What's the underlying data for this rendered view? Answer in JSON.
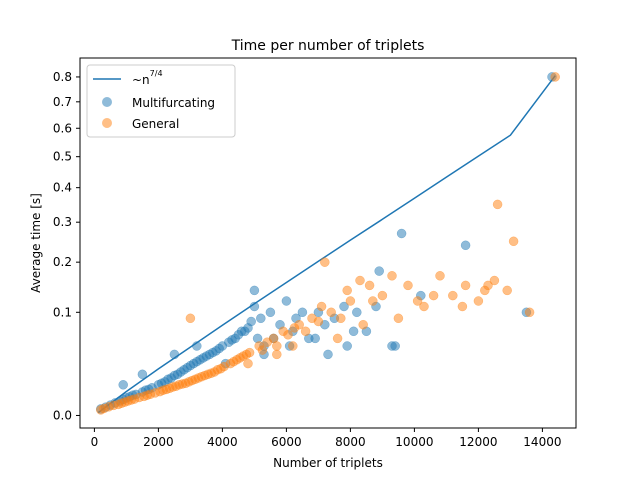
{
  "chart_data": {
    "type": "scatter",
    "title": "Time per number of triplets",
    "xlabel": "Number of triplets",
    "ylabel": "Average time [s]",
    "xlim": [
      -450,
      15050
    ],
    "yscale": "power-4/7",
    "ylim": [
      -0.0025,
      0.88
    ],
    "xticks": [
      0,
      2000,
      4000,
      6000,
      8000,
      10000,
      12000,
      14000
    ],
    "yticks": [
      0.0,
      0.1,
      0.2,
      0.3,
      0.4,
      0.5,
      0.6,
      0.7,
      0.8
    ],
    "xtick_labels": [
      "0",
      "2000",
      "4000",
      "6000",
      "8000",
      "10000",
      "12000",
      "14000"
    ],
    "ytick_labels": [
      "0.0",
      "0.1",
      "0.2",
      "0.3",
      "0.4",
      "0.5",
      "0.6",
      "0.7",
      "0.8"
    ],
    "grid": false,
    "legend_position": "top-left",
    "legend": [
      {
        "label": "~n^(7/4)",
        "label_main": "~n",
        "label_exp": "7/4",
        "kind": "line",
        "color": "#1f77b4"
      },
      {
        "label": "Multifurcating",
        "kind": "marker",
        "color": "#1f77b4"
      },
      {
        "label": "General",
        "kind": "marker",
        "color": "#ff7f0e"
      }
    ],
    "series": [
      {
        "name": "~n^(7/4)",
        "kind": "line",
        "color": "#1f77b4",
        "x": [
          120,
          1000,
          2000,
          3000,
          4000,
          5000,
          6000,
          7000,
          8000,
          9000,
          10000,
          11000,
          12000,
          13000,
          14400
        ],
        "y": [
          0.00019,
          0.0078,
          0.0249,
          0.0487,
          0.079,
          0.115,
          0.156,
          0.202,
          0.253,
          0.308,
          0.368,
          0.433,
          0.502,
          0.575,
          0.805
        ]
      },
      {
        "name": "Multifurcating",
        "kind": "scatter",
        "color": "#1f77b4",
        "x": [
          200,
          350,
          500,
          650,
          800,
          900,
          1000,
          1100,
          1200,
          1300,
          1500,
          1600,
          1700,
          1800,
          2000,
          2100,
          2200,
          2300,
          2400,
          2500,
          2600,
          2700,
          2800,
          2900,
          3000,
          3100,
          3200,
          3300,
          3400,
          3500,
          3600,
          3700,
          3800,
          3900,
          4000,
          4200,
          4300,
          4400,
          4500,
          4700,
          4800,
          4900,
          5000,
          5000,
          5100,
          5200,
          5300,
          5500,
          5600,
          5800,
          6000,
          6200,
          6300,
          6500,
          6700,
          7000,
          7200,
          7500,
          7800,
          7900,
          8200,
          8500,
          8800,
          8900,
          9300,
          9600,
          10200,
          11600,
          13500,
          14300,
          900,
          1500,
          2500,
          3200,
          4100,
          4600,
          5300,
          6100,
          6900,
          7300,
          8100,
          9400
        ],
        "y": [
          0.0008,
          0.0012,
          0.0018,
          0.0025,
          0.0032,
          0.0038,
          0.0045,
          0.005,
          0.0058,
          0.0062,
          0.0075,
          0.0085,
          0.009,
          0.01,
          0.012,
          0.013,
          0.014,
          0.016,
          0.017,
          0.019,
          0.02,
          0.022,
          0.024,
          0.026,
          0.028,
          0.03,
          0.032,
          0.034,
          0.036,
          0.038,
          0.04,
          0.042,
          0.044,
          0.047,
          0.05,
          0.055,
          0.058,
          0.06,
          0.065,
          0.07,
          0.075,
          0.085,
          0.14,
          0.11,
          0.06,
          0.09,
          0.05,
          0.1,
          0.06,
          0.08,
          0.12,
          0.07,
          0.09,
          0.1,
          0.06,
          0.1,
          0.08,
          0.09,
          0.11,
          0.05,
          0.1,
          0.07,
          0.11,
          0.18,
          0.05,
          0.27,
          0.13,
          0.24,
          0.1,
          0.8,
          0.012,
          0.02,
          0.04,
          0.05,
          0.03,
          0.07,
          0.04,
          0.05,
          0.06,
          0.04,
          0.07,
          0.05
        ]
      },
      {
        "name": "General",
        "kind": "scatter",
        "color": "#ff7f0e",
        "x": [
          200,
          300,
          450,
          600,
          750,
          850,
          950,
          1050,
          1150,
          1250,
          1400,
          1550,
          1650,
          1750,
          1900,
          2050,
          2150,
          2250,
          2350,
          2450,
          2550,
          2650,
          2750,
          2850,
          2950,
          3050,
          3150,
          3250,
          3350,
          3450,
          3550,
          3650,
          3750,
          3850,
          3950,
          4050,
          4250,
          4350,
          4450,
          4550,
          4650,
          4750,
          4850,
          5150,
          5250,
          5400,
          5600,
          5700,
          5900,
          6050,
          6250,
          6400,
          6600,
          6800,
          7000,
          7100,
          7200,
          7400,
          7700,
          7900,
          8000,
          8300,
          8600,
          8700,
          9000,
          9300,
          9800,
          10100,
          10300,
          10800,
          11200,
          11600,
          12000,
          12300,
          12500,
          12600,
          12900,
          13100,
          13600,
          14400,
          3000,
          4800,
          5700,
          6200,
          7600,
          8400,
          9500,
          10600,
          11500,
          12200
        ],
        "y": [
          0.0006,
          0.0009,
          0.0013,
          0.0017,
          0.002,
          0.0024,
          0.0028,
          0.0032,
          0.0036,
          0.004,
          0.0047,
          0.0052,
          0.0058,
          0.0063,
          0.007,
          0.0077,
          0.0085,
          0.009,
          0.0097,
          0.0105,
          0.011,
          0.012,
          0.0125,
          0.013,
          0.014,
          0.015,
          0.016,
          0.017,
          0.018,
          0.019,
          0.02,
          0.021,
          0.022,
          0.024,
          0.025,
          0.027,
          0.03,
          0.032,
          0.034,
          0.036,
          0.038,
          0.04,
          0.042,
          0.05,
          0.045,
          0.055,
          0.06,
          0.05,
          0.07,
          0.065,
          0.075,
          0.08,
          0.07,
          0.09,
          0.085,
          0.11,
          0.2,
          0.1,
          0.09,
          0.14,
          0.12,
          0.16,
          0.15,
          0.12,
          0.13,
          0.17,
          0.15,
          0.12,
          0.11,
          0.17,
          0.13,
          0.15,
          0.12,
          0.15,
          0.16,
          0.35,
          0.14,
          0.25,
          0.1,
          0.8,
          0.09,
          0.03,
          0.04,
          0.05,
          0.06,
          0.08,
          0.09,
          0.13,
          0.11,
          0.14
        ]
      }
    ]
  }
}
